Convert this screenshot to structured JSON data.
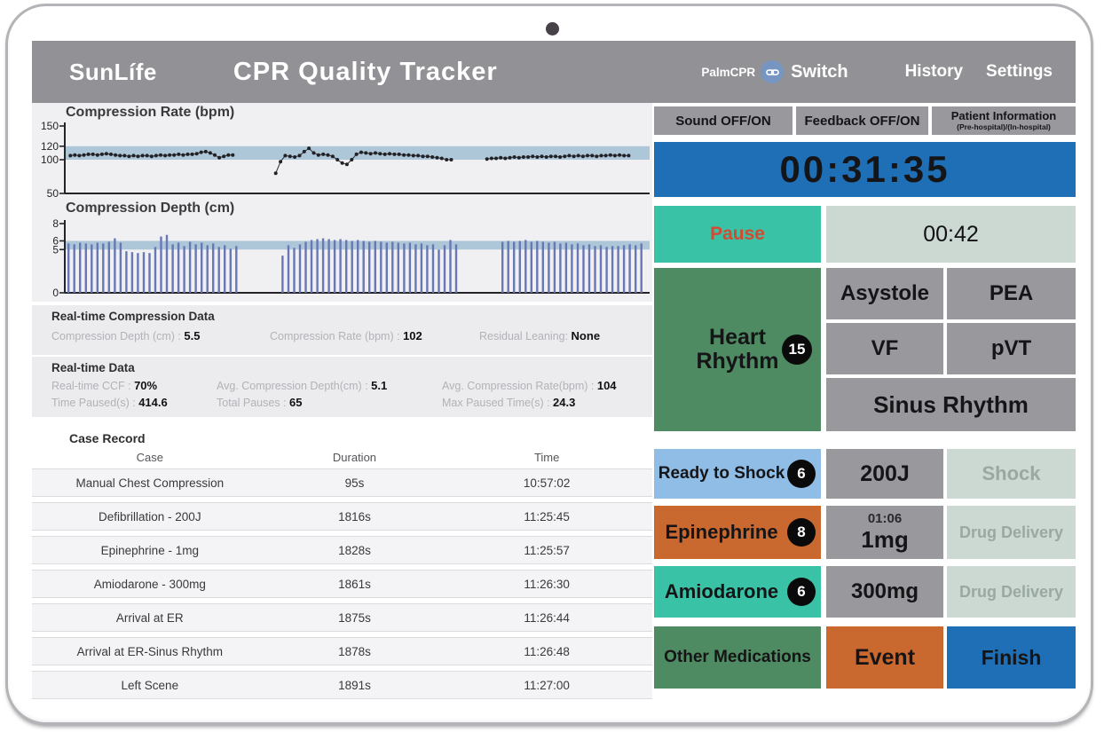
{
  "header": {
    "brand": "SunLífe",
    "title": "CPR Quality Tracker",
    "palmcpr_label": "PalmCPR",
    "switch_label": "Switch",
    "nav": {
      "history": "History",
      "settings": "Settings"
    }
  },
  "chart_data": [
    {
      "type": "line",
      "title": "Compression Rate (bpm)",
      "ymin": 50,
      "ymax": 150,
      "yticks": [
        150,
        120,
        100,
        50
      ],
      "target_band": [
        100,
        120
      ],
      "segments": [
        {
          "x0": 0.5,
          "dx": 0.78,
          "values": [
            106,
            107,
            106,
            107,
            108,
            108,
            107,
            108,
            109,
            108,
            107,
            106,
            106,
            105,
            106,
            105,
            106,
            106,
            105,
            106,
            107,
            106,
            107,
            107,
            108,
            107,
            108,
            108,
            109,
            111,
            112,
            110,
            107,
            103,
            105,
            107,
            107
          ]
        },
        {
          "x0": 36,
          "dx": 0.82,
          "values": [
            80,
            97,
            106,
            105,
            104,
            106,
            112,
            117,
            110,
            107,
            108,
            107,
            105,
            100,
            95,
            93,
            100,
            108,
            111,
            110,
            109,
            110,
            109,
            108,
            109,
            108,
            108,
            107,
            107,
            106,
            106,
            105,
            105,
            104,
            103,
            102,
            100,
            100
          ]
        },
        {
          "x0": 72.5,
          "dx": 0.79,
          "values": [
            101,
            102,
            102,
            103,
            102,
            103,
            104,
            103,
            104,
            104,
            105,
            104,
            105,
            104,
            105,
            105,
            104,
            105,
            106,
            105,
            106,
            105,
            106,
            106,
            105,
            106,
            106,
            107,
            106,
            107,
            106,
            106
          ]
        }
      ]
    },
    {
      "type": "bar",
      "title": "Compression Depth (cm)",
      "ymin": 0,
      "ymax": 8,
      "yticks": [
        8,
        6,
        5,
        0
      ],
      "target_band": [
        5,
        6
      ],
      "bars": [
        5.7,
        5.6,
        5.8,
        5.7,
        5.6,
        5.8,
        5.7,
        5.9,
        6.3,
        5.8,
        4.8,
        4.7,
        4.6,
        4.7,
        4.6,
        5.3,
        6.5,
        6.7,
        5.6,
        5.8,
        5.4,
        5.9,
        5.6,
        5.8,
        5.5,
        5.7,
        5.3,
        5.5,
        5.1,
        5.4,
        null,
        null,
        null,
        null,
        null,
        null,
        null,
        4.3,
        5.5,
        5.2,
        5.6,
        5.9,
        6.1,
        6.2,
        6.3,
        6.2,
        6.1,
        6.2,
        6.1,
        6.0,
        6.1,
        6.0,
        5.9,
        6.0,
        5.9,
        5.8,
        5.9,
        5.8,
        5.7,
        5.8,
        5.6,
        5.7,
        5.5,
        5.6,
        5.0,
        5.5,
        6.1,
        5.6,
        null,
        null,
        null,
        null,
        null,
        null,
        null,
        5.9,
        6.0,
        5.9,
        6.0,
        6.1,
        5.9,
        6.0,
        5.9,
        5.8,
        5.9,
        5.7,
        5.8,
        5.6,
        5.7,
        5.5,
        5.6,
        5.4,
        5.5,
        5.3,
        5.4,
        5.4,
        5.5,
        5.6,
        5.5,
        5.7
      ]
    }
  ],
  "realtime_compression": {
    "title": "Real-time Compression Data",
    "fields": [
      {
        "label": "Compression Depth (cm) : ",
        "value": "5.5"
      },
      {
        "label": "Compression Rate (bpm) : ",
        "value": "102"
      },
      {
        "label": "Residual Leaning: ",
        "value": "None"
      }
    ]
  },
  "realtime": {
    "title": "Real-time Data",
    "fields": [
      {
        "label": "Real-time CCF : ",
        "value": "70%"
      },
      {
        "label": "Avg. Compression Depth(cm) : ",
        "value": "5.1"
      },
      {
        "label": "Avg. Compression Rate(bpm) : ",
        "value": "104"
      },
      {
        "label": "Time Paused(s) : ",
        "value": "414.6"
      },
      {
        "label": "Total Pauses : ",
        "value": "65"
      },
      {
        "label": "Max Paused Time(s) : ",
        "value": "24.3"
      }
    ]
  },
  "case_record": {
    "title": "Case Record",
    "columns": [
      "Case",
      "Duration",
      "Time"
    ],
    "rows": [
      [
        "Manual Chest Compression",
        "95s",
        "10:57:02"
      ],
      [
        "Defibrillation - 200J",
        "1816s",
        "11:25:45"
      ],
      [
        "Epinephrine - 1mg",
        "1828s",
        "11:25:57"
      ],
      [
        "Amiodarone - 300mg",
        "1861s",
        "11:26:30"
      ],
      [
        "Arrival at ER",
        "1875s",
        "11:26:44"
      ],
      [
        "Arrival at ER-Sinus Rhythm",
        "1878s",
        "11:26:48"
      ],
      [
        "Left Scene",
        "1891s",
        "11:27:00"
      ]
    ]
  },
  "right_panel": {
    "sound_button": "Sound OFF/ON",
    "feedback_button": "Feedback OFF/ON",
    "patient_button": {
      "label": "Patient Information",
      "sub": "(Pre-hospital)/(In-hospital)"
    },
    "main_timer": "00:31:35",
    "pause": {
      "label": "Pause",
      "timer": "00:42"
    },
    "heart_rhythm": {
      "line1": "Heart",
      "line2": "Rhythm",
      "badge": "15",
      "options": [
        {
          "label": "Asystole"
        },
        {
          "label": "PEA"
        },
        {
          "label": "VF"
        },
        {
          "label": "pVT"
        },
        {
          "label": "Sinus Rhythm"
        }
      ]
    },
    "shock_row": {
      "label": "Ready to Shock",
      "badge": "6",
      "energy": "200J",
      "action": "Shock"
    },
    "epinephrine_row": {
      "label": "Epinephrine",
      "badge": "8",
      "timer": "01:06",
      "dose": "1mg",
      "action": "Drug Delivery"
    },
    "amiodarone_row": {
      "label": "Amiodarone",
      "badge": "6",
      "dose": "300mg",
      "action": "Drug Delivery"
    },
    "bottom_row": {
      "other": "Other Medications",
      "event": "Event",
      "finish": "Finish"
    }
  },
  "colors": {
    "header_gray": "#929296",
    "button_gray": "#98989d",
    "timer_blue": "#1e6fb6",
    "pause_teal": "#39c2a5",
    "pause_text_red": "#d24b33",
    "rhythm_green": "#4f8b62",
    "shock_light_blue": "#8fbde5",
    "epinephrine_orange": "#c9682f",
    "disabled_sage": "#ccd8d2",
    "disabled_text": "#9aa8a2",
    "target_band_blue": "#a9c4d7",
    "depth_bar_blue": "#6a77b5"
  }
}
